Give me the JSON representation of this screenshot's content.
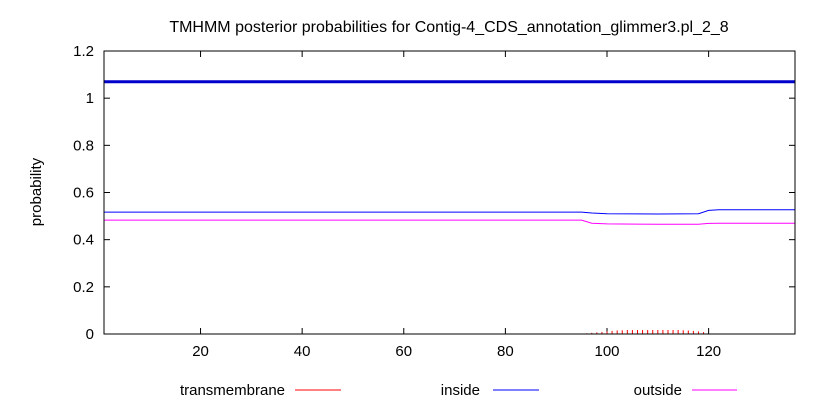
{
  "chart_data": {
    "type": "line",
    "title": "TMHMM posterior probabilities for Contig-4_CDS_annotation_glimmer3.pl_2_8",
    "xlabel": "",
    "ylabel": "probability",
    "xlim": [
      1,
      137
    ],
    "ylim": [
      0,
      1.2
    ],
    "x_ticks": [
      20,
      40,
      60,
      80,
      100,
      120
    ],
    "y_ticks": [
      0,
      0.2,
      0.4,
      0.6,
      0.8,
      1,
      1.2
    ],
    "y_tick_labels": [
      "0",
      "0.2",
      "0.4",
      "0.6",
      "0.8",
      "1",
      "1.2"
    ],
    "grid": false,
    "legend_position": "bottom",
    "series": [
      {
        "name": "transmembrane",
        "style": "impulses",
        "color": "#ff0000",
        "points": [
          [
            96,
            0.003
          ],
          [
            97,
            0.005
          ],
          [
            98,
            0.007
          ],
          [
            99,
            0.009
          ],
          [
            100,
            0.011
          ],
          [
            101,
            0.013
          ],
          [
            102,
            0.015
          ],
          [
            103,
            0.016
          ],
          [
            104,
            0.017
          ],
          [
            105,
            0.017
          ],
          [
            106,
            0.017
          ],
          [
            107,
            0.017
          ],
          [
            108,
            0.017
          ],
          [
            109,
            0.017
          ],
          [
            110,
            0.017
          ],
          [
            111,
            0.017
          ],
          [
            112,
            0.017
          ],
          [
            113,
            0.017
          ],
          [
            114,
            0.017
          ],
          [
            115,
            0.016
          ],
          [
            116,
            0.015
          ],
          [
            117,
            0.013
          ],
          [
            118,
            0.011
          ],
          [
            119,
            0.008
          ]
        ]
      },
      {
        "name": "inside",
        "style": "line",
        "color": "#0000ff",
        "points": [
          [
            1,
            0.517
          ],
          [
            95,
            0.517
          ],
          [
            97,
            0.513
          ],
          [
            100,
            0.51
          ],
          [
            110,
            0.509
          ],
          [
            118,
            0.51
          ],
          [
            120,
            0.524
          ],
          [
            122,
            0.527
          ],
          [
            137,
            0.527
          ]
        ]
      },
      {
        "name": "outside",
        "style": "line",
        "color": "#ff00ff",
        "points": [
          [
            1,
            0.483
          ],
          [
            95,
            0.483
          ],
          [
            97,
            0.47
          ],
          [
            100,
            0.467
          ],
          [
            110,
            0.465
          ],
          [
            118,
            0.465
          ],
          [
            120,
            0.469
          ],
          [
            122,
            0.47
          ],
          [
            137,
            0.47
          ]
        ]
      },
      {
        "name": "",
        "style": "thick-line",
        "color": "#0000cc",
        "points": [
          [
            1,
            1.07
          ],
          [
            137,
            1.07
          ]
        ]
      }
    ]
  }
}
